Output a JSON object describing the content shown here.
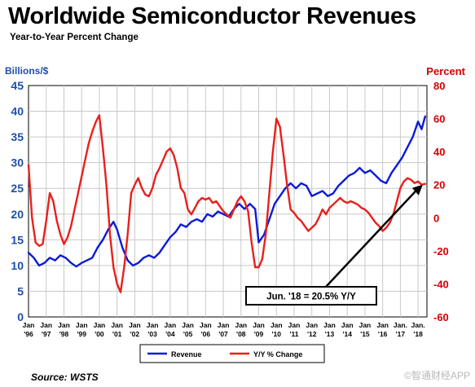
{
  "title": "Worldwide Semiconductor Revenues",
  "subtitle": "Year-to-Year Percent Change",
  "source": "Source: WSTS",
  "watermark": "©智通财经APP",
  "colors": {
    "revenue": "#0a1bd6",
    "yoy": "#e8201c",
    "left_axis": "#1f4fa8",
    "right_axis": "#d40000",
    "grid": "#c8c8c8"
  },
  "chart_data": {
    "type": "line",
    "title": "Worldwide Semiconductor Revenues",
    "subtitle": "Year-to-Year Percent Change",
    "ylabel_left": "Billions/$",
    "ylabel_right": "Percent",
    "ylim_left": [
      0,
      45
    ],
    "ylim_right": [
      -60,
      80
    ],
    "xlim": [
      1996.0,
      2018.5
    ],
    "yticks_left": [
      0,
      5,
      10,
      15,
      20,
      25,
      30,
      35,
      40,
      45
    ],
    "yticks_right": [
      -60,
      -40,
      -20,
      0,
      20,
      40,
      60,
      80
    ],
    "grid": true,
    "legend_position": "bottom",
    "x_tick_top": [
      "Jan",
      "Jan",
      "Jan",
      "Jan",
      "Jan",
      "Jan",
      "Jan",
      "Jan",
      "Jan",
      "Jan",
      "Jan",
      "Jan",
      "Jan",
      "Jan",
      "Jan",
      "Jan",
      "Jan",
      "Jan",
      "Jan",
      "Jan",
      "Jan",
      "Jan.",
      "Jan."
    ],
    "x_tick_bottom": [
      "'96",
      "'97",
      "'98",
      "'99",
      "'00",
      "'01",
      "'02",
      "'03",
      "'04",
      "'05",
      "'06",
      "'07",
      "'08",
      "'09",
      "'10",
      "'11",
      "'12",
      "'13",
      "'14",
      "'15",
      "'16",
      "'17",
      "'18"
    ],
    "series": [
      {
        "name": "Revenue",
        "axis": "left",
        "x": [
          1996.0,
          1996.3,
          1996.6,
          1996.9,
          1997.2,
          1997.5,
          1997.8,
          1998.1,
          1998.4,
          1998.7,
          1999.0,
          1999.3,
          1999.6,
          1999.9,
          2000.2,
          2000.5,
          2000.8,
          2001.0,
          2001.3,
          2001.6,
          2001.9,
          2002.2,
          2002.5,
          2002.8,
          2003.1,
          2003.4,
          2003.7,
          2004.0,
          2004.3,
          2004.6,
          2004.9,
          2005.2,
          2005.5,
          2005.8,
          2006.1,
          2006.4,
          2006.7,
          2007.0,
          2007.3,
          2007.6,
          2007.9,
          2008.2,
          2008.5,
          2008.8,
          2009.0,
          2009.3,
          2009.6,
          2009.9,
          2010.2,
          2010.5,
          2010.8,
          2011.1,
          2011.4,
          2011.7,
          2012.0,
          2012.3,
          2012.6,
          2012.9,
          2013.2,
          2013.5,
          2013.8,
          2014.1,
          2014.4,
          2014.7,
          2015.0,
          2015.3,
          2015.6,
          2015.9,
          2016.2,
          2016.5,
          2016.8,
          2017.1,
          2017.4,
          2017.7,
          2018.0,
          2018.2,
          2018.4
        ],
        "values": [
          12.5,
          11.5,
          10.0,
          10.5,
          11.5,
          11.0,
          12.0,
          11.5,
          10.5,
          9.8,
          10.5,
          11.0,
          11.5,
          13.5,
          15.0,
          17.0,
          18.5,
          17.0,
          13.5,
          11.0,
          10.0,
          10.5,
          11.5,
          12.0,
          11.5,
          12.5,
          14.0,
          15.5,
          16.5,
          18.0,
          17.5,
          18.5,
          19.0,
          18.5,
          20.0,
          19.5,
          20.5,
          20.0,
          19.5,
          21.0,
          22.0,
          21.0,
          22.0,
          21.0,
          14.5,
          16.0,
          19.0,
          22.0,
          23.5,
          25.0,
          26.0,
          25.0,
          26.0,
          25.5,
          23.5,
          24.0,
          24.5,
          23.5,
          24.0,
          25.5,
          26.5,
          27.5,
          28.0,
          29.0,
          28.0,
          28.5,
          27.5,
          26.5,
          26.0,
          28.0,
          29.5,
          31.0,
          33.0,
          35.0,
          38.0,
          36.5,
          39.0
        ]
      },
      {
        "name": "Y/Y % Change",
        "axis": "right",
        "x": [
          1996.0,
          1996.2,
          1996.4,
          1996.6,
          1996.8,
          1997.0,
          1997.2,
          1997.4,
          1997.6,
          1997.8,
          1998.0,
          1998.2,
          1998.4,
          1998.6,
          1998.8,
          1999.0,
          1999.2,
          1999.4,
          1999.6,
          1999.8,
          2000.0,
          2000.2,
          2000.4,
          2000.6,
          2000.8,
          2001.0,
          2001.2,
          2001.4,
          2001.6,
          2001.8,
          2002.0,
          2002.2,
          2002.4,
          2002.6,
          2002.8,
          2003.0,
          2003.2,
          2003.4,
          2003.6,
          2003.8,
          2004.0,
          2004.2,
          2004.4,
          2004.6,
          2004.8,
          2005.0,
          2005.2,
          2005.4,
          2005.6,
          2005.8,
          2006.0,
          2006.2,
          2006.4,
          2006.6,
          2006.8,
          2007.0,
          2007.2,
          2007.4,
          2007.6,
          2007.8,
          2008.0,
          2008.2,
          2008.4,
          2008.6,
          2008.8,
          2009.0,
          2009.2,
          2009.4,
          2009.6,
          2009.8,
          2010.0,
          2010.2,
          2010.4,
          2010.6,
          2010.8,
          2011.0,
          2011.2,
          2011.4,
          2011.6,
          2011.8,
          2012.0,
          2012.2,
          2012.4,
          2012.6,
          2012.8,
          2013.0,
          2013.2,
          2013.4,
          2013.6,
          2013.8,
          2014.0,
          2014.2,
          2014.4,
          2014.6,
          2014.8,
          2015.0,
          2015.2,
          2015.4,
          2015.6,
          2015.8,
          2016.0,
          2016.2,
          2016.4,
          2016.6,
          2016.8,
          2017.0,
          2017.2,
          2017.4,
          2017.6,
          2017.8,
          2018.0,
          2018.2,
          2018.4
        ],
        "values": [
          32,
          0,
          -15,
          -17,
          -16,
          -2,
          15,
          10,
          -2,
          -10,
          -16,
          -12,
          -5,
          5,
          15,
          25,
          35,
          45,
          52,
          58,
          62,
          42,
          20,
          -10,
          -30,
          -40,
          -45,
          -30,
          -10,
          15,
          20,
          24,
          18,
          14,
          13,
          18,
          26,
          30,
          35,
          40,
          42,
          38,
          30,
          18,
          15,
          5,
          2,
          6,
          10,
          12,
          11,
          12,
          9,
          10,
          7,
          4,
          2,
          0,
          5,
          10,
          13,
          10,
          4,
          -15,
          -30,
          -30,
          -25,
          -10,
          15,
          40,
          60,
          55,
          38,
          20,
          5,
          3,
          0,
          -2,
          -5,
          -8,
          -6,
          -4,
          0,
          5,
          2,
          6,
          8,
          10,
          12,
          10,
          9,
          10,
          9,
          8,
          6,
          5,
          3,
          0,
          -3,
          -5,
          -8,
          -6,
          -3,
          2,
          10,
          18,
          22,
          24,
          23,
          21,
          22,
          20,
          20.5
        ]
      }
    ],
    "annotation": {
      "text": "Jun. '18 = 20.5% Y/Y",
      "x": 2018.4,
      "y": 20.5,
      "axis": "right"
    }
  }
}
